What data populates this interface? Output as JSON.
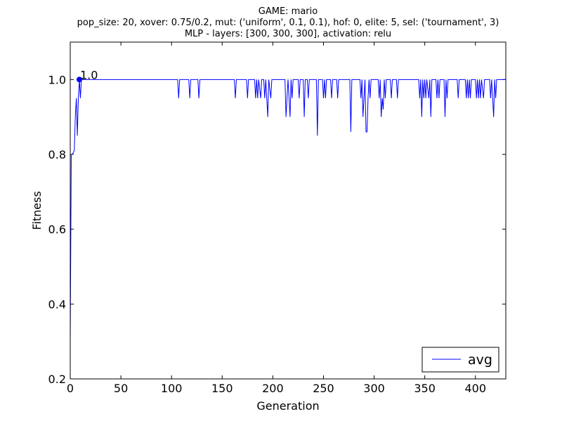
{
  "chart_data": {
    "type": "line",
    "title_lines": [
      "GAME: mario",
      "pop_size: 20, xover: 0.75/0.2, mut: ('uniform', 0.1, 0.1), hof: 0, elite: 5, sel: ('tournament', 3)",
      "MLP - layers: [300, 300, 300], activation: relu"
    ],
    "xlabel": "Generation",
    "ylabel": "Fitness",
    "xlim": [
      0,
      430
    ],
    "ylim": [
      0.2,
      1.1
    ],
    "xticks": [
      0,
      50,
      100,
      150,
      200,
      250,
      300,
      350,
      400
    ],
    "yticks": [
      0.2,
      0.4,
      0.6,
      0.8,
      1.0
    ],
    "ytick_labels": [
      "0.2",
      "0.4",
      "0.6",
      "0.8",
      "1.0"
    ],
    "grid": false,
    "legend": "bottom-right",
    "series_color": "#0000ff",
    "marker": {
      "x": 9,
      "y": 1.0,
      "label": "1.0"
    },
    "series": [
      {
        "name": "avg",
        "points": [
          [
            0,
            0.3
          ],
          [
            1,
            0.8
          ],
          [
            2,
            0.8
          ],
          [
            4,
            0.81
          ],
          [
            5,
            0.9
          ],
          [
            6,
            0.95
          ],
          [
            7,
            0.85
          ],
          [
            8,
            0.95
          ],
          [
            9,
            1.0
          ],
          [
            10,
            0.95
          ],
          [
            11,
            1.0
          ],
          [
            106,
            1.0
          ],
          [
            107,
            0.95
          ],
          [
            108,
            1.0
          ],
          [
            117,
            1.0
          ],
          [
            118,
            0.95
          ],
          [
            119,
            1.0
          ],
          [
            126,
            1.0
          ],
          [
            127,
            0.95
          ],
          [
            128,
            1.0
          ],
          [
            162,
            1.0
          ],
          [
            163,
            0.95
          ],
          [
            164,
            1.0
          ],
          [
            174,
            1.0
          ],
          [
            175,
            0.95
          ],
          [
            176,
            1.0
          ],
          [
            182,
            1.0
          ],
          [
            183,
            0.95
          ],
          [
            184,
            1.0
          ],
          [
            185,
            0.95
          ],
          [
            186,
            1.0
          ],
          [
            188,
            0.95
          ],
          [
            189,
            1.0
          ],
          [
            191,
            1.0
          ],
          [
            192,
            0.95
          ],
          [
            193,
            1.0
          ],
          [
            194,
            0.95
          ],
          [
            195,
            0.9
          ],
          [
            196,
            1.0
          ],
          [
            198,
            0.95
          ],
          [
            199,
            1.0
          ],
          [
            212,
            1.0
          ],
          [
            213,
            0.9
          ],
          [
            214,
            0.95
          ],
          [
            215,
            1.0
          ],
          [
            216,
            0.95
          ],
          [
            217,
            0.9
          ],
          [
            218,
            1.0
          ],
          [
            219,
            0.95
          ],
          [
            220,
            1.0
          ],
          [
            225,
            1.0
          ],
          [
            226,
            0.95
          ],
          [
            227,
            1.0
          ],
          [
            230,
            1.0
          ],
          [
            231,
            0.9
          ],
          [
            232,
            1.0
          ],
          [
            234,
            1.0
          ],
          [
            235,
            0.95
          ],
          [
            236,
            1.0
          ],
          [
            243,
            1.0
          ],
          [
            244,
            0.85
          ],
          [
            245,
            1.0
          ],
          [
            249,
            1.0
          ],
          [
            250,
            0.95
          ],
          [
            251,
            1.0
          ],
          [
            252,
            0.95
          ],
          [
            253,
            1.0
          ],
          [
            257,
            1.0
          ],
          [
            258,
            0.95
          ],
          [
            259,
            1.0
          ],
          [
            263,
            1.0
          ],
          [
            264,
            0.95
          ],
          [
            265,
            1.0
          ],
          [
            276,
            1.0
          ],
          [
            277,
            0.86
          ],
          [
            278,
            1.0
          ],
          [
            286,
            1.0
          ],
          [
            287,
            0.95
          ],
          [
            288,
            1.0
          ],
          [
            289,
            0.9
          ],
          [
            290,
            0.95
          ],
          [
            291,
            1.0
          ],
          [
            292,
            0.86
          ],
          [
            293,
            0.86
          ],
          [
            294,
            0.95
          ],
          [
            295,
            1.0
          ],
          [
            296,
            0.95
          ],
          [
            297,
            1.0
          ],
          [
            304,
            1.0
          ],
          [
            305,
            0.95
          ],
          [
            306,
            1.0
          ],
          [
            307,
            0.9
          ],
          [
            308,
            0.95
          ],
          [
            309,
            0.92
          ],
          [
            310,
            1.0
          ],
          [
            311,
            0.95
          ],
          [
            312,
            1.0
          ],
          [
            316,
            1.0
          ],
          [
            317,
            0.95
          ],
          [
            318,
            1.0
          ],
          [
            322,
            1.0
          ],
          [
            323,
            0.95
          ],
          [
            324,
            1.0
          ],
          [
            344,
            1.0
          ],
          [
            345,
            0.95
          ],
          [
            346,
            1.0
          ],
          [
            347,
            0.9
          ],
          [
            348,
            1.0
          ],
          [
            349,
            0.95
          ],
          [
            350,
            1.0
          ],
          [
            351,
            0.95
          ],
          [
            352,
            1.0
          ],
          [
            354,
            0.95
          ],
          [
            355,
            1.0
          ],
          [
            356,
            0.9
          ],
          [
            357,
            1.0
          ],
          [
            361,
            1.0
          ],
          [
            362,
            0.95
          ],
          [
            363,
            1.0
          ],
          [
            364,
            0.95
          ],
          [
            365,
            1.0
          ],
          [
            369,
            1.0
          ],
          [
            370,
            0.9
          ],
          [
            371,
            1.0
          ],
          [
            372,
            0.95
          ],
          [
            373,
            1.0
          ],
          [
            382,
            1.0
          ],
          [
            383,
            0.95
          ],
          [
            384,
            1.0
          ],
          [
            390,
            1.0
          ],
          [
            391,
            0.95
          ],
          [
            392,
            1.0
          ],
          [
            393,
            0.95
          ],
          [
            394,
            1.0
          ],
          [
            395,
            0.95
          ],
          [
            396,
            1.0
          ],
          [
            400,
            1.0
          ],
          [
            401,
            0.95
          ],
          [
            402,
            1.0
          ],
          [
            403,
            0.95
          ],
          [
            404,
            1.0
          ],
          [
            405,
            0.95
          ],
          [
            406,
            1.0
          ],
          [
            408,
            0.95
          ],
          [
            409,
            1.0
          ],
          [
            414,
            1.0
          ],
          [
            415,
            0.95
          ],
          [
            416,
            1.0
          ],
          [
            417,
            0.95
          ],
          [
            418,
            0.9
          ],
          [
            419,
            1.0
          ],
          [
            420,
            0.95
          ],
          [
            421,
            1.0
          ],
          [
            430,
            1.0
          ]
        ]
      }
    ]
  }
}
